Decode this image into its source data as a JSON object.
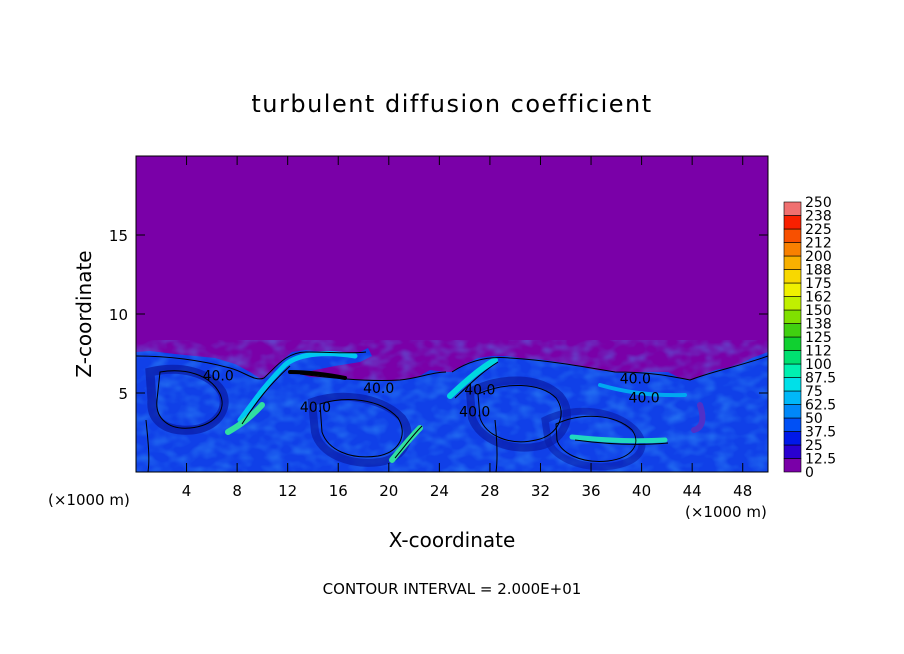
{
  "chart_data": {
    "type": "heatmap",
    "title": "turbulent diffusion coefficient",
    "xlabel": "X-coordinate",
    "ylabel": "Z-coordinate",
    "x_unit": "(×1000 m)",
    "y_unit": "(×1000 m)",
    "footer": "CONTOUR INTERVAL = 2.000E+01",
    "xlim": [
      0,
      50
    ],
    "ylim": [
      0,
      20
    ],
    "x_ticks": [
      4,
      8,
      12,
      16,
      20,
      24,
      28,
      32,
      36,
      40,
      44,
      48
    ],
    "y_ticks": [
      5,
      10,
      15
    ],
    "contour_labels": [
      {
        "text": "40.0",
        "x": 6.5,
        "y": 5.8
      },
      {
        "text": "40.0",
        "x": 19.2,
        "y": 5.0
      },
      {
        "text": "40.0",
        "x": 14.2,
        "y": 3.8
      },
      {
        "text": "40.0",
        "x": 26.8,
        "y": 3.5
      },
      {
        "text": "40.0",
        "x": 39.5,
        "y": 5.6
      },
      {
        "text": "40.0",
        "x": 40.2,
        "y": 4.4
      },
      {
        "text": "40.0",
        "x": 27.2,
        "y": 4.9
      }
    ],
    "colorbar": {
      "levels": [
        "0",
        "12.5",
        "25",
        "37.5",
        "50",
        "62.5",
        "75",
        "87.5",
        "100",
        "112",
        "125",
        "138",
        "150",
        "162",
        "175",
        "188",
        "200",
        "212",
        "225",
        "238",
        "250"
      ],
      "colors": [
        "#7a00a8",
        "#2a00d0",
        "#0018e8",
        "#0050f5",
        "#0088f8",
        "#00b8f8",
        "#00e0e8",
        "#00f0b0",
        "#00e070",
        "#10d030",
        "#40d010",
        "#80e000",
        "#c0f000",
        "#f0f000",
        "#f8d800",
        "#f8b000",
        "#f88000",
        "#f85000",
        "#f82000",
        "#f07070"
      ]
    },
    "field": {
      "background_value": 0,
      "turbulent_layer_top_approx": 7.3,
      "dominant_layer_value": "37.5-50"
    }
  }
}
